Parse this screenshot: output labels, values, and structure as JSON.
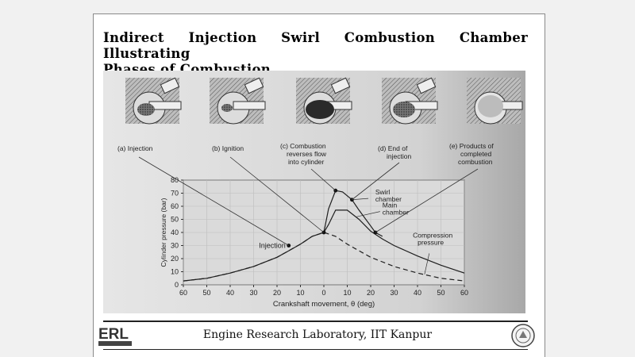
{
  "slide": {
    "title_line1": "Indirect Injection Swirl Combustion Chamber Illustrating",
    "title_line2": "Phases of Combustion",
    "footer": "Engine Research Laboratory, IIT Kanpur",
    "logo_left_text": "ERL"
  },
  "panels": [
    {
      "label_lines": [
        "(a) Injection"
      ]
    },
    {
      "label_lines": [
        "(b) Ignition"
      ]
    },
    {
      "label_lines": [
        "(c) Combustion",
        "reverses flow",
        "into cylinder"
      ]
    },
    {
      "label_lines": [
        "(d) End of",
        "injection"
      ]
    },
    {
      "label_lines": [
        "(e) Products of",
        "completed",
        "combustion"
      ]
    }
  ],
  "chart_data": {
    "type": "line",
    "xlabel": "Crankshaft movement, θ (deg)",
    "ylabel": "Cylinder pressure (bar)",
    "xlim": [
      -60,
      60
    ],
    "ylim": [
      0,
      80
    ],
    "xticks": [
      -60,
      -50,
      -40,
      -30,
      -20,
      -10,
      0,
      10,
      20,
      30,
      40,
      50,
      60
    ],
    "xtick_labels": [
      "60",
      "50",
      "40",
      "30",
      "20",
      "10",
      "0",
      "10",
      "20",
      "30",
      "40",
      "50",
      "60"
    ],
    "yticks": [
      0,
      10,
      20,
      30,
      40,
      50,
      60,
      70,
      80
    ],
    "grid": true,
    "series": [
      {
        "name": "Compression pressure",
        "style": "dashed",
        "x": [
          -60,
          -50,
          -40,
          -30,
          -20,
          -10,
          -5,
          0,
          5,
          10,
          20,
          30,
          40,
          50,
          60
        ],
        "y": [
          3,
          5,
          9,
          14,
          21,
          31,
          37,
          40,
          37,
          31,
          21,
          14,
          9,
          5,
          3
        ]
      },
      {
        "name": "Main chamber",
        "style": "solid",
        "x": [
          -60,
          -50,
          -40,
          -30,
          -20,
          -15,
          -10,
          -5,
          0,
          2,
          5,
          10,
          15,
          20,
          25,
          30,
          40,
          50,
          60
        ],
        "y": [
          3,
          5,
          9,
          14,
          21,
          26,
          31,
          37,
          40,
          46,
          57,
          57,
          50,
          41,
          35,
          30,
          22,
          15,
          9
        ]
      },
      {
        "name": "Swirl chamber",
        "style": "solid",
        "x": [
          0,
          2,
          5,
          8,
          10,
          12,
          15,
          20,
          22,
          25
        ],
        "y": [
          40,
          58,
          72,
          71,
          68,
          65,
          57,
          45,
          40,
          37
        ]
      }
    ],
    "annotations": [
      {
        "text": "Injection",
        "x": -15,
        "y": 30
      },
      {
        "text": "Swirl chamber",
        "x": 12,
        "y": 65
      },
      {
        "text": "Main chamber",
        "x": 11,
        "y": 57
      },
      {
        "text": "Compression pressure",
        "x": 43,
        "y": 32
      }
    ],
    "markers": [
      {
        "x": -15,
        "y": 30
      },
      {
        "x": 0,
        "y": 40
      },
      {
        "x": 5,
        "y": 72
      },
      {
        "x": 12,
        "y": 65
      },
      {
        "x": 22,
        "y": 40
      }
    ]
  }
}
